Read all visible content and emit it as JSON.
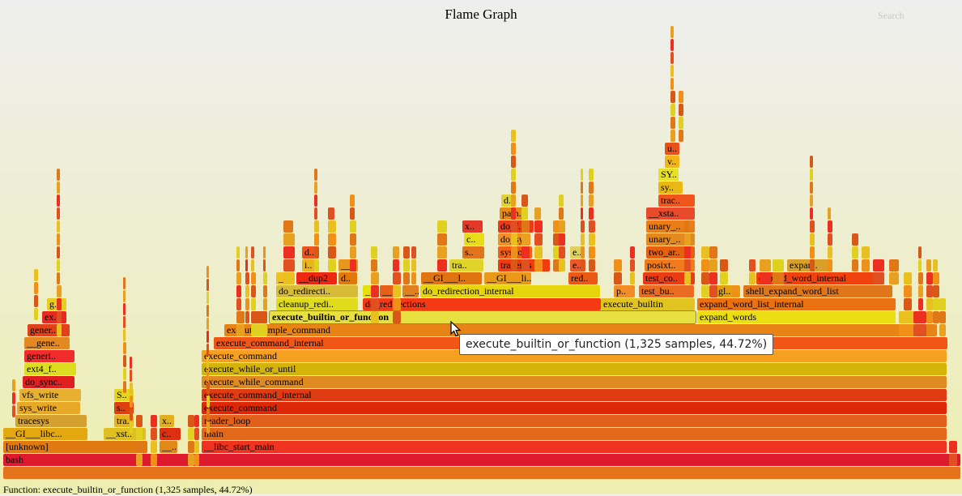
{
  "title": "Flame Graph",
  "search_label": "Search",
  "status": "Function: execute_builtin_or_function (1,325 samples, 44.72%)",
  "tooltip": "execute_builtin_or_function (1,325 samples, 44.72%)",
  "frames": [
    {
      "label": "",
      "color": "#e4731c"
    },
    {
      "label": "bash",
      "color": "#dd1a2e"
    },
    {
      "label": "[unknown]",
      "color": "#e07a10"
    },
    {
      "label": "__libc_start_main",
      "color": "#ee3320"
    },
    {
      "label": "main",
      "color": "#e3681a"
    },
    {
      "label": "__GI___libc...",
      "color": "#e3a810"
    },
    {
      "label": "__xst..",
      "color": "#e0c020"
    },
    {
      "label": "c..",
      "color": "#dd3010"
    },
    {
      "label": "__..",
      "color": "#e08818"
    },
    {
      "label": "reader_loop",
      "color": "#e0601c"
    },
    {
      "label": "tracesys",
      "color": "#d4a030"
    },
    {
      "label": "tra..",
      "color": "#e3b420"
    },
    {
      "label": "x..",
      "color": "#e0b020"
    },
    {
      "label": "execute_command",
      "color": "#dd2808"
    },
    {
      "label": "vfs_write",
      "color": "#e7b030"
    },
    {
      "label": "sys_write",
      "color": "#e8a828"
    },
    {
      "label": "S..",
      "color": "#e4d420"
    },
    {
      "label": "s..",
      "color": "#de4010"
    },
    {
      "label": "execute_command_internal",
      "color": "#e03c14"
    },
    {
      "label": "do_sync..",
      "color": "#e02020"
    },
    {
      "label": "execute_while_command",
      "color": "#e08a22"
    },
    {
      "label": "ext4_f..",
      "color": "#dcdc20"
    },
    {
      "label": "execute_while_or_until",
      "color": "#d4b408"
    },
    {
      "label": "generi..",
      "color": "#f02c2c"
    },
    {
      "label": "execute_command",
      "color": "#f5a020"
    },
    {
      "label": "__gene..",
      "color": "#e48822"
    },
    {
      "label": "execute_command_internal",
      "color": "#f25616"
    },
    {
      "label": "gener..",
      "color": "#e0421a"
    },
    {
      "label": "execute_simple_command",
      "color": "#e88415"
    },
    {
      "label": "ex..",
      "color": "#e62a22"
    },
    {
      "label": "g..",
      "color": "#e8cc20"
    },
    {
      "label": "execute_builtin_or_function",
      "color": "#e8e040",
      "hl": true
    },
    {
      "label": "expand_words",
      "color": "#ebdf14"
    },
    {
      "label": "cleanup_redi..",
      "color": "#e0dc1c"
    },
    {
      "label": "do_redirections",
      "color": "#f43a14"
    },
    {
      "label": "execute_builtin",
      "color": "#e1c420"
    },
    {
      "label": "expand_word_list_internal",
      "color": "#ea7010"
    },
    {
      "label": "do_redirecti..",
      "color": "#d8bc38"
    },
    {
      "label": "_..",
      "color": "#e4e008"
    },
    {
      "label": "__..",
      "color": "#e86018"
    },
    {
      "label": "__..",
      "color": "#e08020"
    },
    {
      "label": "do_redirection_internal",
      "color": "#e6d40c"
    },
    {
      "label": "p..",
      "color": "#f28c26"
    },
    {
      "label": "test_bu..",
      "color": "#ea6c20"
    },
    {
      "label": "gl..",
      "color": "#e2a010"
    },
    {
      "label": "shell_expand_word_list",
      "color": "#e0761a"
    },
    {
      "label": "__..",
      "color": "#f0c020"
    },
    {
      "label": "__dup2",
      "color": "#ee2810"
    },
    {
      "label": "d..",
      "color": "#e0780a"
    },
    {
      "label": "__GI___l..",
      "color": "#e07410"
    },
    {
      "label": "__GI___li..",
      "color": "#ea9818"
    },
    {
      "label": "red..",
      "color": "#ea5a14"
    },
    {
      "label": "test_co..",
      "color": "#ea3c14"
    },
    {
      "label": "expand_word_internal",
      "color": "#f0420e"
    },
    {
      "label": "i..",
      "color": "#eab420"
    },
    {
      "label": "__..",
      "color": "#e8961c"
    },
    {
      "label": "tra..",
      "color": "#e0d42c"
    },
    {
      "label": "tracesys",
      "color": "#ef3c10"
    },
    {
      "label": "e..",
      "color": "#ec5828"
    },
    {
      "label": "posixt..",
      "color": "#f07a1c"
    },
    {
      "label": "expan..",
      "color": "#d8a028"
    },
    {
      "label": "d..",
      "color": "#f0541c"
    },
    {
      "label": "s..",
      "color": "#e2741c"
    },
    {
      "label": "sys_o..",
      "color": "#f26018"
    },
    {
      "label": "e..",
      "color": "#e0d060"
    },
    {
      "label": "two_ar..",
      "color": "#e76010"
    },
    {
      "label": "c..",
      "color": "#e8dc18"
    },
    {
      "label": "do_sy..",
      "color": "#f09022"
    },
    {
      "label": "unary_..",
      "color": "#e48820"
    },
    {
      "label": "x..",
      "color": "#e23a28"
    },
    {
      "label": "do_f..",
      "color": "#ea3c18"
    },
    {
      "label": "unary_..",
      "color": "#ea7d16"
    },
    {
      "label": "path..",
      "color": "#e88a18"
    },
    {
      "label": "__xsta..",
      "color": "#e84a2c"
    },
    {
      "label": "d..",
      "color": "#e0d230"
    },
    {
      "label": "trac..",
      "color": "#f0561c"
    },
    {
      "label": "sy..",
      "color": "#eab814"
    },
    {
      "label": "SY..",
      "color": "#e6e028"
    },
    {
      "label": "v..",
      "color": "#f2b418"
    },
    {
      "label": "u..",
      "color": "#e7521a"
    }
  ]
}
